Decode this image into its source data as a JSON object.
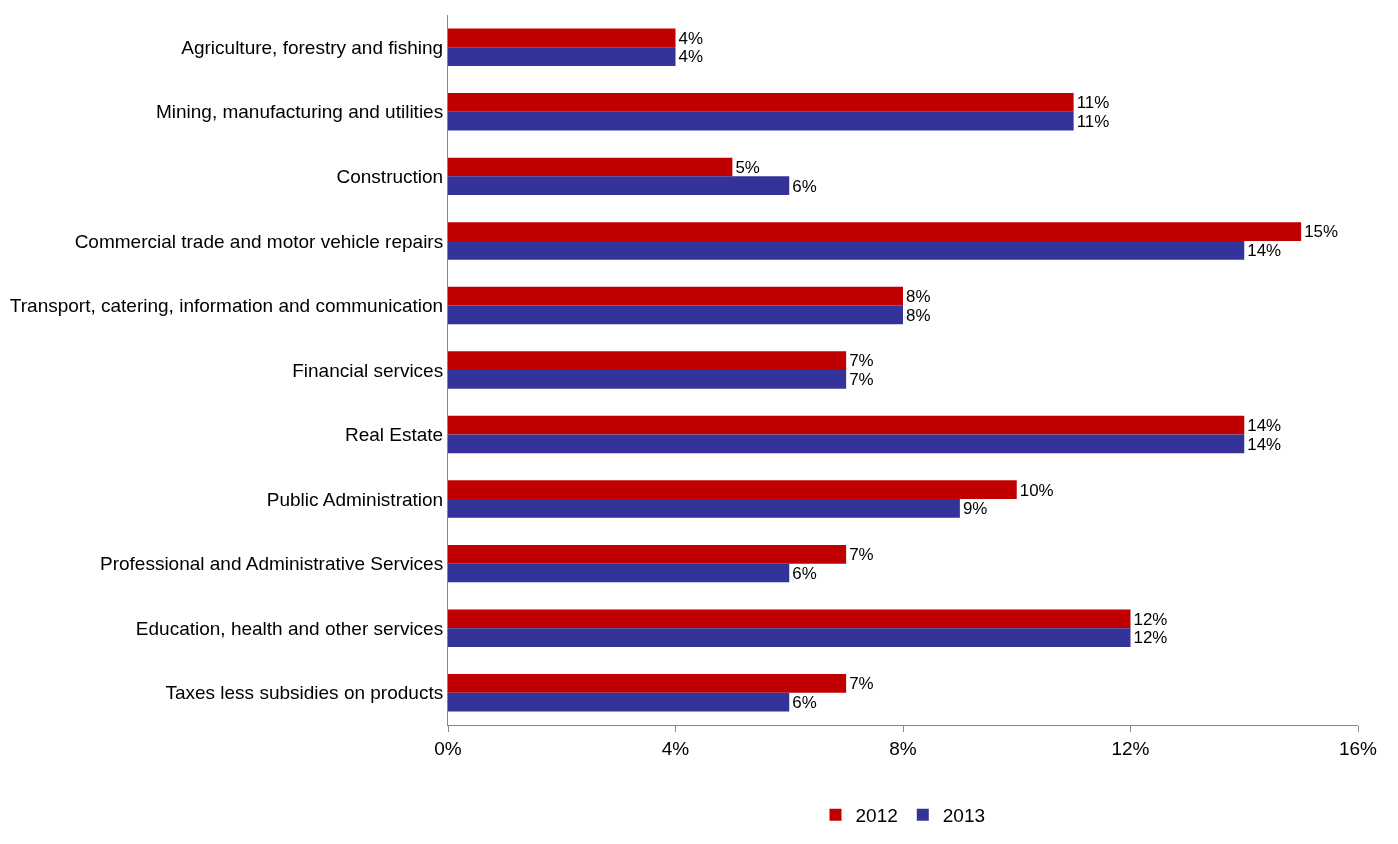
{
  "chart_data": {
    "type": "bar",
    "orientation": "horizontal",
    "categories": [
      "Agriculture, forestry and fishing",
      "Mining, manufacturing and utilities",
      "Construction",
      "Commercial trade and motor vehicle repairs",
      "Transport, catering, information and communication",
      "Financial services",
      "Real Estate",
      "Public Administration",
      "Professional and Administrative Services",
      "Education, health and other services",
      "Taxes less subsidies on products"
    ],
    "series": [
      {
        "name": "2012",
        "color": "#c00000",
        "values": [
          4,
          11,
          5,
          15,
          8,
          7,
          14,
          10,
          7,
          12,
          7
        ],
        "value_labels": [
          "4%",
          "11%",
          "5%",
          "15%",
          "8%",
          "7%",
          "14%",
          "10%",
          "7%",
          "12%",
          "7%"
        ]
      },
      {
        "name": "2013",
        "color": "#333399",
        "values": [
          4,
          11,
          6,
          14,
          8,
          7,
          14,
          9,
          6,
          12,
          6
        ],
        "value_labels": [
          "4%",
          "11%",
          "6%",
          "14%",
          "8%",
          "7%",
          "14%",
          "9%",
          "6%",
          "12%",
          "6%"
        ]
      }
    ],
    "xlim": [
      0,
      16
    ],
    "xticks": [
      {
        "value": 0,
        "label": "0%"
      },
      {
        "value": 4,
        "label": "4%"
      },
      {
        "value": 8,
        "label": "8%"
      },
      {
        "value": 12,
        "label": "12%"
      },
      {
        "value": 16,
        "label": "16%"
      }
    ],
    "grid": false,
    "legend": "bottom"
  }
}
